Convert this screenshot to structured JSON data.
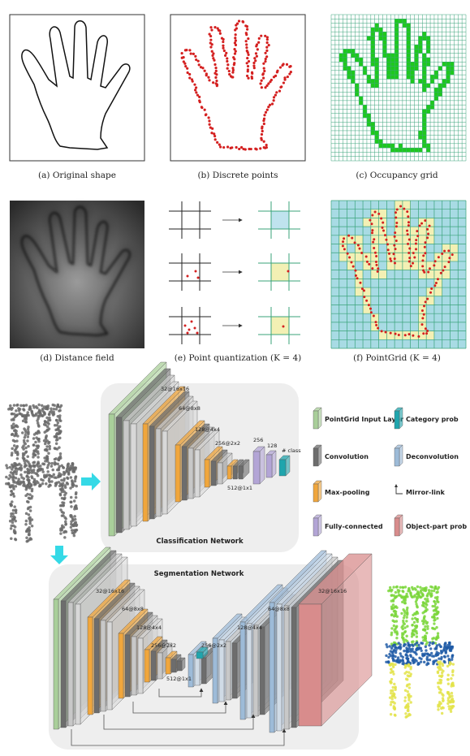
{
  "captions": {
    "a": "(a) Original shape",
    "b": "(b) Discrete points",
    "c": "(c) Occupancy grid",
    "d": "(d) Distance field",
    "e": "(e) Point quantization (K = 4)",
    "f": "(f) PointGrid (K = 4)"
  },
  "classification": {
    "title": "Classification Network",
    "labels": [
      "32@16x16",
      "64@8x8",
      "128@4x4",
      "256@2x2",
      "512@1x1",
      "256",
      "128",
      "# class"
    ]
  },
  "segmentation": {
    "title": "Segmentation Network",
    "labels": [
      "32@16x16",
      "64@8x8",
      "128@4x4",
      "256@2x2",
      "512@1x1",
      "256@2x2",
      "128@4x4",
      "64@8x8",
      "32@16x16"
    ]
  },
  "legend": [
    {
      "label": "PointGrid Input Layer",
      "color": "#a9cf9a"
    },
    {
      "label": "Category prob",
      "color": "#1fa5ad"
    },
    {
      "label": "Convolution",
      "color": "#6d6d6d"
    },
    {
      "label": "Deconvolution",
      "color": "#9dbbd8"
    },
    {
      "label": "Max-pooling",
      "color": "#f0a63c"
    },
    {
      "label": "Mirror-link",
      "color": "#333333"
    },
    {
      "label": "Fully-connected",
      "color": "#b3a5d6"
    },
    {
      "label": "Object-part prob",
      "color": "#d88c8c"
    }
  ],
  "colors": {
    "points": "#d42020",
    "occupancy": "#1ec81e",
    "grid_green": "#3aa37a",
    "grid_cell": "#a8dbe4",
    "highlight": "#f3f0b4",
    "arrow": "#35d9e6"
  }
}
